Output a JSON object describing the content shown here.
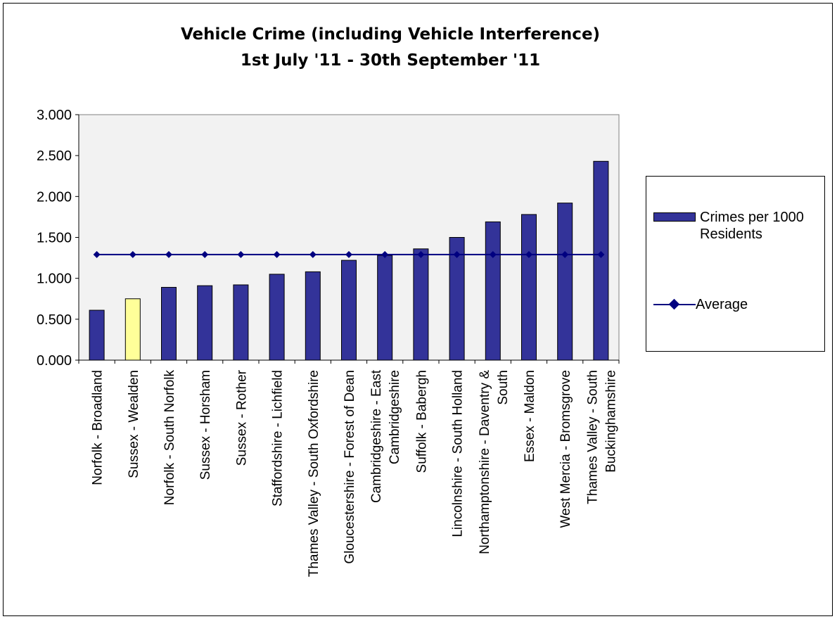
{
  "chart_data": {
    "type": "bar",
    "title_lines": [
      "Vehicle Crime (including Vehicle Interference)",
      "1st July '11 - 30th September '11"
    ],
    "categories": [
      [
        "Norfolk - Broadland"
      ],
      [
        "Sussex - Wealden"
      ],
      [
        "Norfolk - South Norfolk"
      ],
      [
        "Sussex - Horsham"
      ],
      [
        "Sussex - Rother"
      ],
      [
        "Staffordshire - Lichfield"
      ],
      [
        "Thames Valley - South Oxfordshire"
      ],
      [
        "Gloucestershire - Forest of Dean"
      ],
      [
        "Cambridgeshire - East",
        "Cambridgeshire"
      ],
      [
        "Suffolk - Babergh"
      ],
      [
        "Lincolnshire - South Holland"
      ],
      [
        "Northamptonshire - Daventry &",
        "South"
      ],
      [
        "Essex - Maldon"
      ],
      [
        "West Mercia - Bromsgrove"
      ],
      [
        "Thames Valley - South",
        "Buckinghamshire"
      ]
    ],
    "series": [
      {
        "name": "Crimes per 1000 Residents",
        "kind": "bar",
        "values": [
          0.61,
          0.75,
          0.89,
          0.91,
          0.92,
          1.05,
          1.08,
          1.22,
          1.28,
          1.36,
          1.5,
          1.69,
          1.78,
          1.92,
          2.43
        ],
        "color": "#333399",
        "highlight_index": 1,
        "highlight_color": "#ffff99"
      },
      {
        "name": "Average",
        "kind": "line",
        "values": [
          1.29,
          1.29,
          1.29,
          1.29,
          1.29,
          1.29,
          1.29,
          1.29,
          1.29,
          1.29,
          1.29,
          1.29,
          1.29,
          1.29,
          1.29
        ],
        "color": "#000080",
        "marker": "diamond"
      }
    ],
    "yticks": [
      "0.000",
      "0.500",
      "1.000",
      "1.500",
      "2.000",
      "2.500",
      "3.000"
    ],
    "ylim": [
      0,
      3
    ],
    "xlabel": "",
    "ylabel": "",
    "grid": false,
    "plot_background": "#f2f2f2",
    "legend_position": "right"
  },
  "legend": {
    "items": [
      {
        "kind": "bar",
        "lines": [
          "Crimes per 1000",
          "Residents"
        ]
      },
      {
        "kind": "line",
        "lines": [
          "Average"
        ]
      }
    ]
  }
}
